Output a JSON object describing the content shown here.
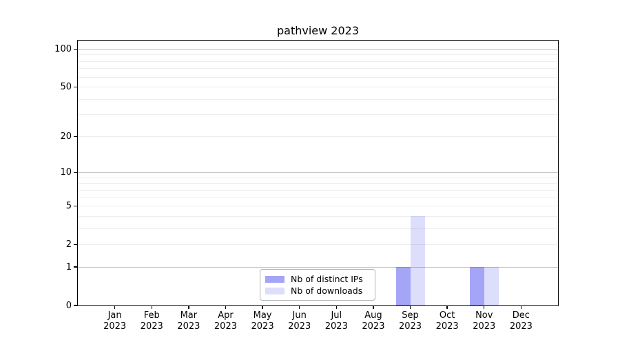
{
  "figure": {
    "background": "#ffffff",
    "text_color": "#000000",
    "spine_color": "#000000",
    "major_grid_color": "#c0c0c0",
    "minor_grid_color": "#ededed",
    "legend_border_color": "#b3b3b3"
  },
  "chart_data": {
    "type": "bar",
    "title": "pathview 2023",
    "categories": [
      "Jan",
      "Feb",
      "Mar",
      "Apr",
      "May",
      "Jun",
      "Jul",
      "Aug",
      "Sep",
      "Oct",
      "Nov",
      "Dec"
    ],
    "x_year": "2023",
    "series": [
      {
        "name": "Nb of distinct IPs",
        "color": "#a6a6f4",
        "fill": "rgba(64,64,238,0.47)",
        "values": [
          0,
          0,
          0,
          0,
          0,
          0,
          0,
          0,
          1,
          0,
          1,
          0
        ]
      },
      {
        "name": "Nb of downloads",
        "color": "#dbdbf8",
        "fill": "rgba(64,64,238,0.18)",
        "values": [
          0,
          0,
          0,
          0,
          0,
          0,
          0,
          0,
          4,
          0,
          1,
          0
        ]
      }
    ],
    "yscale": "log10(value+1)",
    "ylim": [
      0,
      117
    ],
    "ytick_values": [
      100,
      50,
      20,
      10,
      5,
      2,
      1,
      0
    ],
    "ytick_labels": [
      "100",
      "50",
      "20",
      "10",
      "5",
      "2",
      "1",
      "0"
    ],
    "major_grid_values": [
      1,
      10,
      100
    ],
    "minor_grid_values": [
      2,
      3,
      4,
      5,
      6,
      7,
      8,
      9,
      20,
      30,
      40,
      50,
      60,
      70,
      80,
      90
    ],
    "grid": "on",
    "legend_position": "lower center"
  }
}
